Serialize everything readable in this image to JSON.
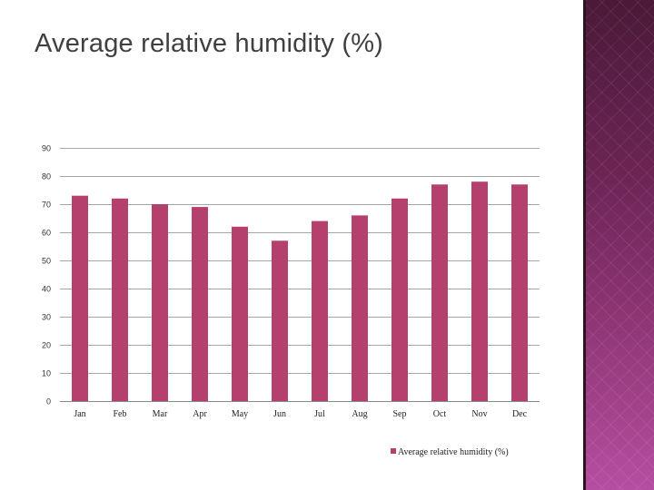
{
  "slide": {
    "title": "Average relative humidity (%)"
  },
  "chart_data": {
    "type": "bar",
    "categories": [
      "Jan",
      "Feb",
      "Mar",
      "Apr",
      "May",
      "Jun",
      "Jul",
      "Aug",
      "Sep",
      "Oct",
      "Nov",
      "Dec"
    ],
    "series": [
      {
        "name": "Average relative humidity (%)",
        "values": [
          73,
          72,
          70,
          69,
          62,
          57,
          64,
          66,
          72,
          77,
          78,
          77
        ]
      }
    ],
    "ylim": [
      0,
      90
    ],
    "yticks": [
      0,
      10,
      20,
      30,
      40,
      50,
      60,
      70,
      80,
      90
    ],
    "grid": true,
    "legend": "bottom-right",
    "bar_color": "#b5406e"
  }
}
